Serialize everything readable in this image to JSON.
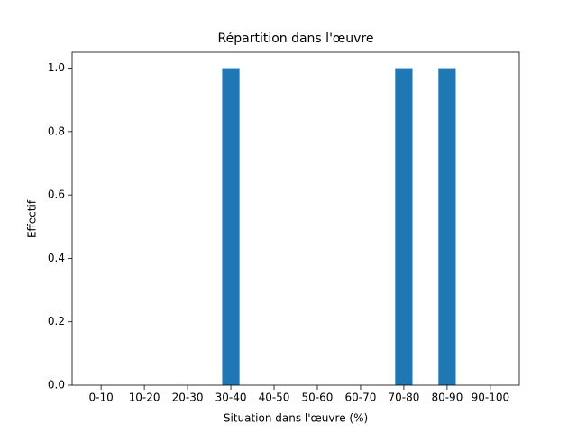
{
  "chart_data": {
    "type": "bar",
    "title": "Répartition dans l'œuvre",
    "x_label": "Situation dans l'œuvre (%)",
    "y_label": "Effectif",
    "categories": [
      "0-10",
      "10-20",
      "20-30",
      "30-40",
      "40-50",
      "50-60",
      "60-70",
      "70-80",
      "80-90",
      "90-100"
    ],
    "values": [
      0,
      0,
      0,
      1,
      0,
      0,
      0,
      1,
      1,
      0
    ],
    "color": "#1f77b4",
    "ylim": [
      0,
      1.05
    ],
    "yticks": [
      {
        "value": 0,
        "label": "0.0"
      },
      0.2,
      0.4,
      0.6,
      0.8,
      {
        "value": 1,
        "label": "1.0"
      }
    ],
    "grid": false
  }
}
